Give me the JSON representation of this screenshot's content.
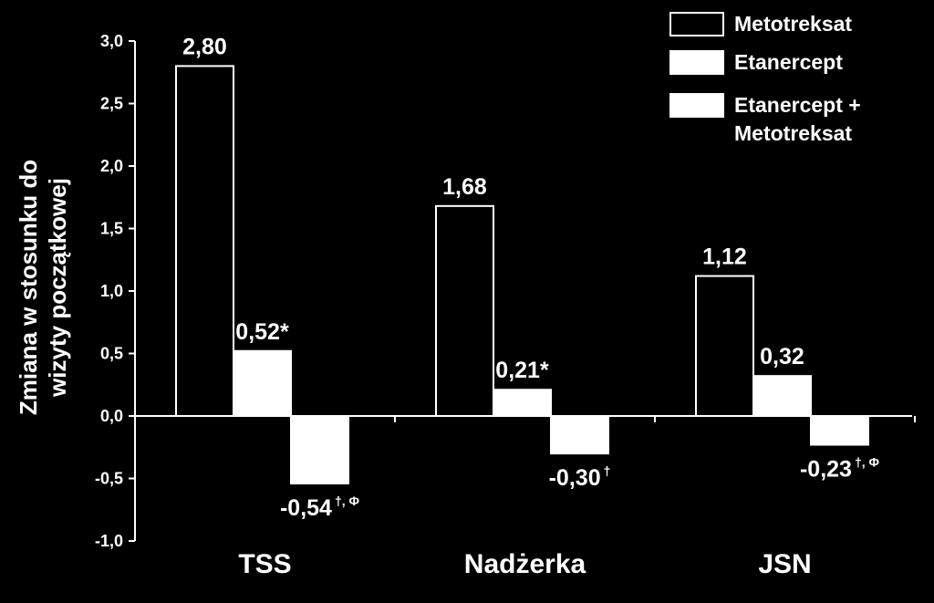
{
  "chart_data": {
    "type": "bar",
    "categories": [
      "TSS",
      "Nadżerka",
      "JSN"
    ],
    "series": [
      {
        "name": "Metotreksat",
        "values": [
          2.8,
          1.68,
          1.12
        ],
        "labels": [
          "2,80",
          "1,68",
          "1,12"
        ],
        "sups": [
          "",
          "",
          ""
        ],
        "fill": "#000000",
        "stroke": "#ffffff"
      },
      {
        "name": "Etanercept",
        "values": [
          0.52,
          0.21,
          0.32
        ],
        "labels": [
          "0,52*",
          "0,21*",
          "0,32"
        ],
        "sups": [
          "",
          "",
          ""
        ],
        "fill": "#ffffff",
        "stroke": "#ffffff"
      },
      {
        "name": "Etanercept + Metotreksat",
        "legend_lines": [
          "Etanercept +",
          "Metotreksat"
        ],
        "values": [
          -0.54,
          -0.3,
          -0.23
        ],
        "labels": [
          "-0,54",
          "-0,30",
          "-0,23"
        ],
        "sups": [
          "†, Φ",
          "†",
          "†, Φ"
        ],
        "fill": "#ffffff",
        "stroke": "#ffffff"
      }
    ],
    "ylabel_lines": [
      "Zmiana w stosunku do",
      "wizyty początkowej"
    ],
    "ylim": [
      -1.0,
      3.0
    ],
    "yticks": [
      3.0,
      2.5,
      2.0,
      1.5,
      1.0,
      0.5,
      0.0,
      -0.5,
      -1.0
    ],
    "ytick_labels": [
      "3,0",
      "2,5",
      "2,0",
      "1,5",
      "1,0",
      "0,5",
      "0,0",
      "-0,5",
      "-1,0"
    ],
    "grid": false,
    "legend_position": "top-right"
  }
}
